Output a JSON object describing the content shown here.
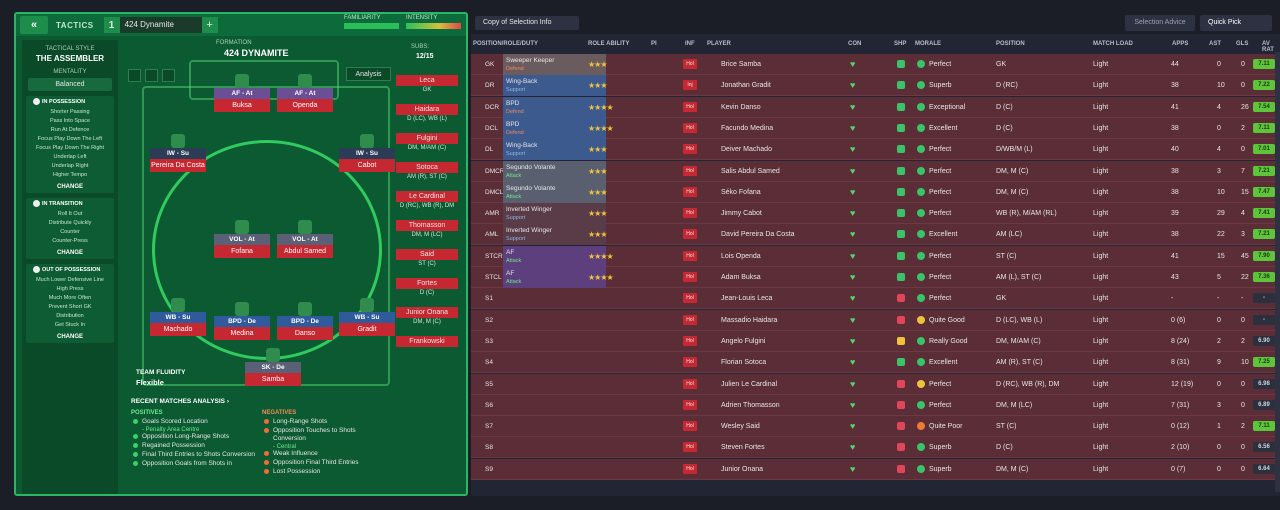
{
  "tactics_header": {
    "back_icon": "«",
    "label": "TACTICS",
    "slot_number": "1",
    "tactic_name": "424 Dynamite",
    "add_label": "+",
    "familiarity_label": "FAMILIARITY",
    "intensity_label": "INTENSITY"
  },
  "tactical_style": {
    "heading": "TACTICAL STYLE",
    "value": "THE ASSEMBLER",
    "mentality_heading": "MENTALITY",
    "mentality_value": "Balanced",
    "in_possession": {
      "title": "IN POSSESSION",
      "items": [
        "Shorter Passing",
        "Pass Into Space",
        "Run At Defence",
        "Focus Play Down The Left",
        "Focus Play Down The Right",
        "Underlap Left",
        "Underlap Right",
        "Higher Tempo"
      ],
      "change": "CHANGE"
    },
    "in_transition": {
      "title": "IN TRANSITION",
      "items": [
        "Roll It Out",
        "Distribute Quickly",
        "Counter",
        "Counter-Press"
      ],
      "change": "CHANGE"
    },
    "out_of_possession": {
      "title": "OUT OF POSSESSION",
      "items": [
        "Much Lower Defensive Line",
        "High Press",
        "Much More Often",
        "Prevent Short GK",
        "Distribution",
        "Get Stuck In"
      ],
      "change": "CHANGE"
    }
  },
  "formation": {
    "label": "FORMATION",
    "name": "424 DYNAMITE",
    "subs_label": "SUBS:",
    "subs_value": "12/15",
    "analysis_label": "Analysis",
    "fluidity_label": "TEAM FLUIDITY",
    "fluidity_value": "Flexible"
  },
  "pitch_players": [
    {
      "role": "AF - At",
      "name": "Buksa",
      "cls": "r-at"
    },
    {
      "role": "AF - At",
      "name": "Openda",
      "cls": "r-at"
    },
    {
      "role": "IW - Su",
      "name": "Pereira Da Costa",
      "cls": "r-su"
    },
    {
      "role": "IW - Su",
      "name": "Cabot",
      "cls": "r-su"
    },
    {
      "role": "VOL - At",
      "name": "Fofana",
      "cls": "r-vo"
    },
    {
      "role": "VOL - At",
      "name": "Abdul Samed",
      "cls": "r-vo"
    },
    {
      "role": "WB - Su",
      "name": "Machado",
      "cls": "r-de"
    },
    {
      "role": "BPD - De",
      "name": "Medina",
      "cls": "r-de"
    },
    {
      "role": "BPD - De",
      "name": "Danso",
      "cls": "r-de"
    },
    {
      "role": "WB - Su",
      "name": "Gradit",
      "cls": "r-de"
    },
    {
      "role": "SK - De",
      "name": "Samba",
      "cls": "r-vo"
    }
  ],
  "subs_list": [
    {
      "name": "Leca",
      "pos": "GK"
    },
    {
      "name": "Haidara",
      "pos": "D (LC), WB (L)"
    },
    {
      "name": "Fulgini",
      "pos": "DM, M/AM (C)"
    },
    {
      "name": "Sotoca",
      "pos": "AM (R), ST (C)"
    },
    {
      "name": "Le Cardinal",
      "pos": "D (RC), WB (R), DM"
    },
    {
      "name": "Thomasson",
      "pos": "DM, M (LC)"
    },
    {
      "name": "Said",
      "pos": "ST (C)"
    },
    {
      "name": "Fortes",
      "pos": "D (C)"
    },
    {
      "name": "Junior Onana",
      "pos": "DM, M (C)"
    },
    {
      "name": "Frankowski",
      "pos": ""
    }
  ],
  "recent_matches": {
    "title": "RECENT MATCHES ANALYSIS ›",
    "positives_label": "POSITIVES",
    "negatives_label": "NEGATIVES",
    "positives": [
      "Goals Scored Location",
      "Opposition Long-Range Shots",
      "Regained Possession",
      "Final Third Entries to Shots Conversion",
      "Opposition Goals from Shots in"
    ],
    "positive_sub": "- Penalty Area Centre",
    "negatives": [
      "Long-Range Shots",
      "Opposition Touches to Shots Conversion",
      "Weak Influence",
      "Opposition Final Third Entries",
      "Lost Possession"
    ],
    "negative_sub": "- Central"
  },
  "selection": {
    "view_label": "Copy of Selection Info",
    "advice_label": "Selection Advice",
    "quick_pick_label": "Quick Pick",
    "columns": [
      "POSITION/ROLE/DUTY",
      "ROLE ABILITY",
      "PI",
      "INF",
      "PLAYER",
      "CON",
      "SHP",
      "MORALE",
      "POSITION",
      "MATCH LOAD",
      "APPS",
      "AST",
      "GLS",
      "AV RAT"
    ]
  },
  "rows": [
    {
      "slot": "GK",
      "role": "Sweeper Keeper",
      "duty": "Defend",
      "dcls": "pos-de",
      "rc": "#6a5b5f",
      "stars": "★★★",
      "inf": "Hol",
      "player": "Brice Samba",
      "shp": "#39c46a",
      "mor": "#39c46a",
      "morale": "Perfect",
      "position": "GK",
      "load": "Light",
      "apps": "44",
      "ast": "0",
      "gls": "0",
      "rat": "7.11",
      "rc2": "av-g"
    },
    {
      "slot": "DR",
      "role": "Wing-Back",
      "duty": "Support",
      "dcls": "pos-su",
      "rc": "#3c5a8e",
      "stars": "★★★",
      "inf": "Inj",
      "player": "Jonathan Gradit",
      "shp": "#39c46a",
      "mor": "#39c46a",
      "morale": "Superb",
      "position": "D (RC)",
      "load": "Light",
      "apps": "38",
      "ast": "10",
      "gls": "0",
      "rat": "7.22",
      "rc2": "av-g"
    },
    {
      "slot": "DCR",
      "role": "BPD",
      "duty": "Defend",
      "dcls": "pos-de",
      "rc": "#3c5a8e",
      "stars": "★★★★",
      "inf": "Hol",
      "player": "Kevin Danso",
      "shp": "#39c46a",
      "mor": "#39c46a",
      "morale": "Exceptional",
      "position": "D (C)",
      "load": "Light",
      "apps": "41",
      "ast": "4",
      "gls": "26",
      "rat": "7.54",
      "rc2": "av-g"
    },
    {
      "slot": "DCL",
      "role": "BPD",
      "duty": "Defend",
      "dcls": "pos-de",
      "rc": "#3c5a8e",
      "stars": "★★★★",
      "inf": "Hol",
      "player": "Facundo Medina",
      "shp": "#39c46a",
      "mor": "#39c46a",
      "morale": "Excellent",
      "position": "D (C)",
      "load": "Light",
      "apps": "38",
      "ast": "0",
      "gls": "2",
      "rat": "7.11",
      "rc2": "av-g"
    },
    {
      "slot": "DL",
      "role": "Wing-Back",
      "duty": "Support",
      "dcls": "pos-su",
      "rc": "#3c5a8e",
      "stars": "★★★",
      "inf": "Hol",
      "player": "Deiver Machado",
      "shp": "#39c46a",
      "mor": "#39c46a",
      "morale": "Perfect",
      "position": "D/WB/M (L)",
      "load": "Light",
      "apps": "40",
      "ast": "4",
      "gls": "0",
      "rat": "7.01",
      "rc2": "av-g"
    },
    {
      "slot": "DMCR",
      "role": "Segundo Volante",
      "duty": "Attack",
      "dcls": "pos-at",
      "rc": "#5a5f70",
      "stars": "★★★",
      "inf": "Hol",
      "player": "Salis Abdul Samed",
      "shp": "#39c46a",
      "mor": "#39c46a",
      "morale": "Perfect",
      "position": "DM, M (C)",
      "load": "Light",
      "apps": "38",
      "ast": "3",
      "gls": "7",
      "rat": "7.21",
      "rc2": "av-g"
    },
    {
      "slot": "DMCL",
      "role": "Segundo Volante",
      "duty": "Attack",
      "dcls": "pos-at",
      "rc": "#5a5f70",
      "stars": "★★★",
      "inf": "Hol",
      "player": "Séko Fofana",
      "shp": "#39c46a",
      "mor": "#39c46a",
      "morale": "Perfect",
      "position": "DM, M (C)",
      "load": "Light",
      "apps": "38",
      "ast": "10",
      "gls": "15",
      "rat": "7.47",
      "rc2": "av-g"
    },
    {
      "slot": "AMR",
      "role": "Inverted Winger",
      "duty": "Support",
      "dcls": "pos-su",
      "rc": "#5a3b48",
      "stars": "★★★",
      "inf": "Hol",
      "player": "Jimmy Cabot",
      "shp": "#39c46a",
      "mor": "#39c46a",
      "morale": "Perfect",
      "position": "WB (R), M/AM (RL)",
      "load": "Light",
      "apps": "39",
      "ast": "29",
      "gls": "4",
      "rat": "7.41",
      "rc2": "av-g"
    },
    {
      "slot": "AML",
      "role": "Inverted Winger",
      "duty": "Support",
      "dcls": "pos-su",
      "rc": "#5a3b48",
      "stars": "★★★",
      "inf": "Hol",
      "player": "David Pereira Da Costa",
      "shp": "#39c46a",
      "mor": "#39c46a",
      "morale": "Excellent",
      "position": "AM (LC)",
      "load": "Light",
      "apps": "38",
      "ast": "22",
      "gls": "3",
      "rat": "7.21",
      "rc2": "av-g"
    },
    {
      "slot": "STCR",
      "role": "AF",
      "duty": "Attack",
      "dcls": "pos-at",
      "rc": "#5e3f7d",
      "stars": "★★★★",
      "inf": "Hol",
      "player": "Lois Openda",
      "shp": "#39c46a",
      "mor": "#39c46a",
      "morale": "Perfect",
      "position": "ST (C)",
      "load": "Light",
      "apps": "41",
      "ast": "15",
      "gls": "45",
      "rat": "7.90",
      "rc2": "av-g"
    },
    {
      "slot": "STCL",
      "role": "AF",
      "duty": "Attack",
      "dcls": "pos-at",
      "rc": "#5e3f7d",
      "stars": "★★★★",
      "inf": "Hol",
      "player": "Adam Buksa",
      "shp": "#39c46a",
      "mor": "#39c46a",
      "morale": "Perfect",
      "position": "AM (L), ST (C)",
      "load": "Light",
      "apps": "43",
      "ast": "5",
      "gls": "22",
      "rat": "7.36",
      "rc2": "av-g"
    },
    {
      "slot": "S1",
      "role": "",
      "duty": "",
      "dcls": "",
      "rc": "",
      "stars": "",
      "inf": "Hol",
      "player": "Jean-Louis Leca",
      "shp": "#e0455a",
      "mor": "#39c46a",
      "morale": "Perfect",
      "position": "GK",
      "load": "Light",
      "apps": "-",
      "ast": "-",
      "gls": "-",
      "rat": "-",
      "rc2": "av-d"
    },
    {
      "slot": "S2",
      "role": "",
      "duty": "",
      "dcls": "",
      "rc": "",
      "stars": "",
      "inf": "Hol",
      "player": "Massadio Haidara",
      "shp": "#e0455a",
      "mor": "#f0c23c",
      "morale": "Quite Good",
      "position": "D (LC), WB (L)",
      "load": "Light",
      "apps": "0 (6)",
      "ast": "0",
      "gls": "0",
      "rat": "-",
      "rc2": "av-d"
    },
    {
      "slot": "S3",
      "role": "",
      "duty": "",
      "dcls": "",
      "rc": "",
      "stars": "",
      "inf": "Hol",
      "player": "Angelo Fulgini",
      "shp": "#f0c23c",
      "mor": "#39c46a",
      "morale": "Really Good",
      "position": "DM, M/AM (C)",
      "load": "Light",
      "apps": "8 (24)",
      "ast": "2",
      "gls": "2",
      "rat": "6.90",
      "rc2": "av-d"
    },
    {
      "slot": "S4",
      "role": "",
      "duty": "",
      "dcls": "",
      "rc": "",
      "stars": "",
      "inf": "Hol",
      "player": "Florian Sotoca",
      "shp": "#39c46a",
      "mor": "#39c46a",
      "morale": "Excellent",
      "position": "AM (R), ST (C)",
      "load": "Light",
      "apps": "8 (31)",
      "ast": "9",
      "gls": "10",
      "rat": "7.25",
      "rc2": "av-g"
    },
    {
      "slot": "S5",
      "role": "",
      "duty": "",
      "dcls": "",
      "rc": "",
      "stars": "",
      "inf": "Hol",
      "player": "Julien Le Cardinal",
      "shp": "#e0455a",
      "mor": "#f0c23c",
      "morale": "Perfect",
      "position": "D (RC), WB (R), DM",
      "load": "Light",
      "apps": "12 (19)",
      "ast": "0",
      "gls": "0",
      "rat": "6.98",
      "rc2": "av-d"
    },
    {
      "slot": "S6",
      "role": "",
      "duty": "",
      "dcls": "",
      "rc": "",
      "stars": "",
      "inf": "Hol",
      "player": "Adrien Thomasson",
      "shp": "#e0455a",
      "mor": "#39c46a",
      "morale": "Perfect",
      "position": "DM, M (LC)",
      "load": "Light",
      "apps": "7 (31)",
      "ast": "3",
      "gls": "0",
      "rat": "6.89",
      "rc2": "av-d"
    },
    {
      "slot": "S7",
      "role": "",
      "duty": "",
      "dcls": "",
      "rc": "",
      "stars": "",
      "inf": "Hol",
      "player": "Wesley Said",
      "shp": "#e0455a",
      "mor": "#f07a3a",
      "morale": "Quite Poor",
      "position": "ST (C)",
      "load": "Light",
      "apps": "0 (12)",
      "ast": "1",
      "gls": "2",
      "rat": "7.11",
      "rc2": "av-g"
    },
    {
      "slot": "S8",
      "role": "",
      "duty": "",
      "dcls": "",
      "rc": "",
      "stars": "",
      "inf": "Hol",
      "player": "Steven Fortes",
      "shp": "#e0455a",
      "mor": "#39c46a",
      "morale": "Superb",
      "position": "D (C)",
      "load": "Light",
      "apps": "2 (10)",
      "ast": "0",
      "gls": "0",
      "rat": "6.56",
      "rc2": "av-d"
    },
    {
      "slot": "S9",
      "role": "",
      "duty": "",
      "dcls": "",
      "rc": "",
      "stars": "",
      "inf": "Hol",
      "player": "Junior Onana",
      "shp": "#e0455a",
      "mor": "#39c46a",
      "morale": "Superb",
      "position": "DM, M (C)",
      "load": "Light",
      "apps": "0 (7)",
      "ast": "0",
      "gls": "0",
      "rat": "6.64",
      "rc2": "av-d"
    }
  ]
}
